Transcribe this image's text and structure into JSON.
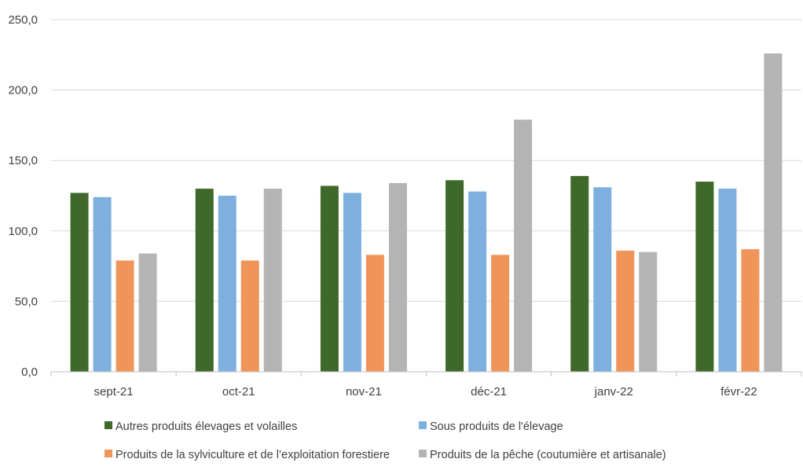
{
  "chart_data": {
    "type": "bar",
    "title": "",
    "xlabel": "",
    "ylabel": "",
    "ylim": [
      0,
      250
    ],
    "y_ticks": [
      "0,0",
      "50,0",
      "100,0",
      "150,0",
      "200,0",
      "250,0"
    ],
    "y_tick_values": [
      0,
      50,
      100,
      150,
      200,
      250
    ],
    "grid": "horizontal",
    "legend_position": "bottom",
    "categories": [
      "sept-21",
      "oct-21",
      "nov-21",
      "déc-21",
      "janv-22",
      "févr-22"
    ],
    "series": [
      {
        "name": "Autres produits élevages et volailles",
        "color": "#3f682b",
        "values": [
          127,
          130,
          132,
          136,
          139,
          135
        ]
      },
      {
        "name": "Sous produits de l'élevage",
        "color": "#7eb0df",
        "values": [
          124,
          125,
          127,
          128,
          131,
          130
        ]
      },
      {
        "name": "Produits de la sylviculture et de l’exploitation forestiere",
        "color": "#f0955a",
        "values": [
          79,
          79,
          83,
          83,
          86,
          87
        ]
      },
      {
        "name": "Produits de la pêche (coutumière et artisanale)",
        "color": "#b4b4b4",
        "values": [
          84,
          130,
          134,
          179,
          85,
          226
        ]
      }
    ]
  }
}
